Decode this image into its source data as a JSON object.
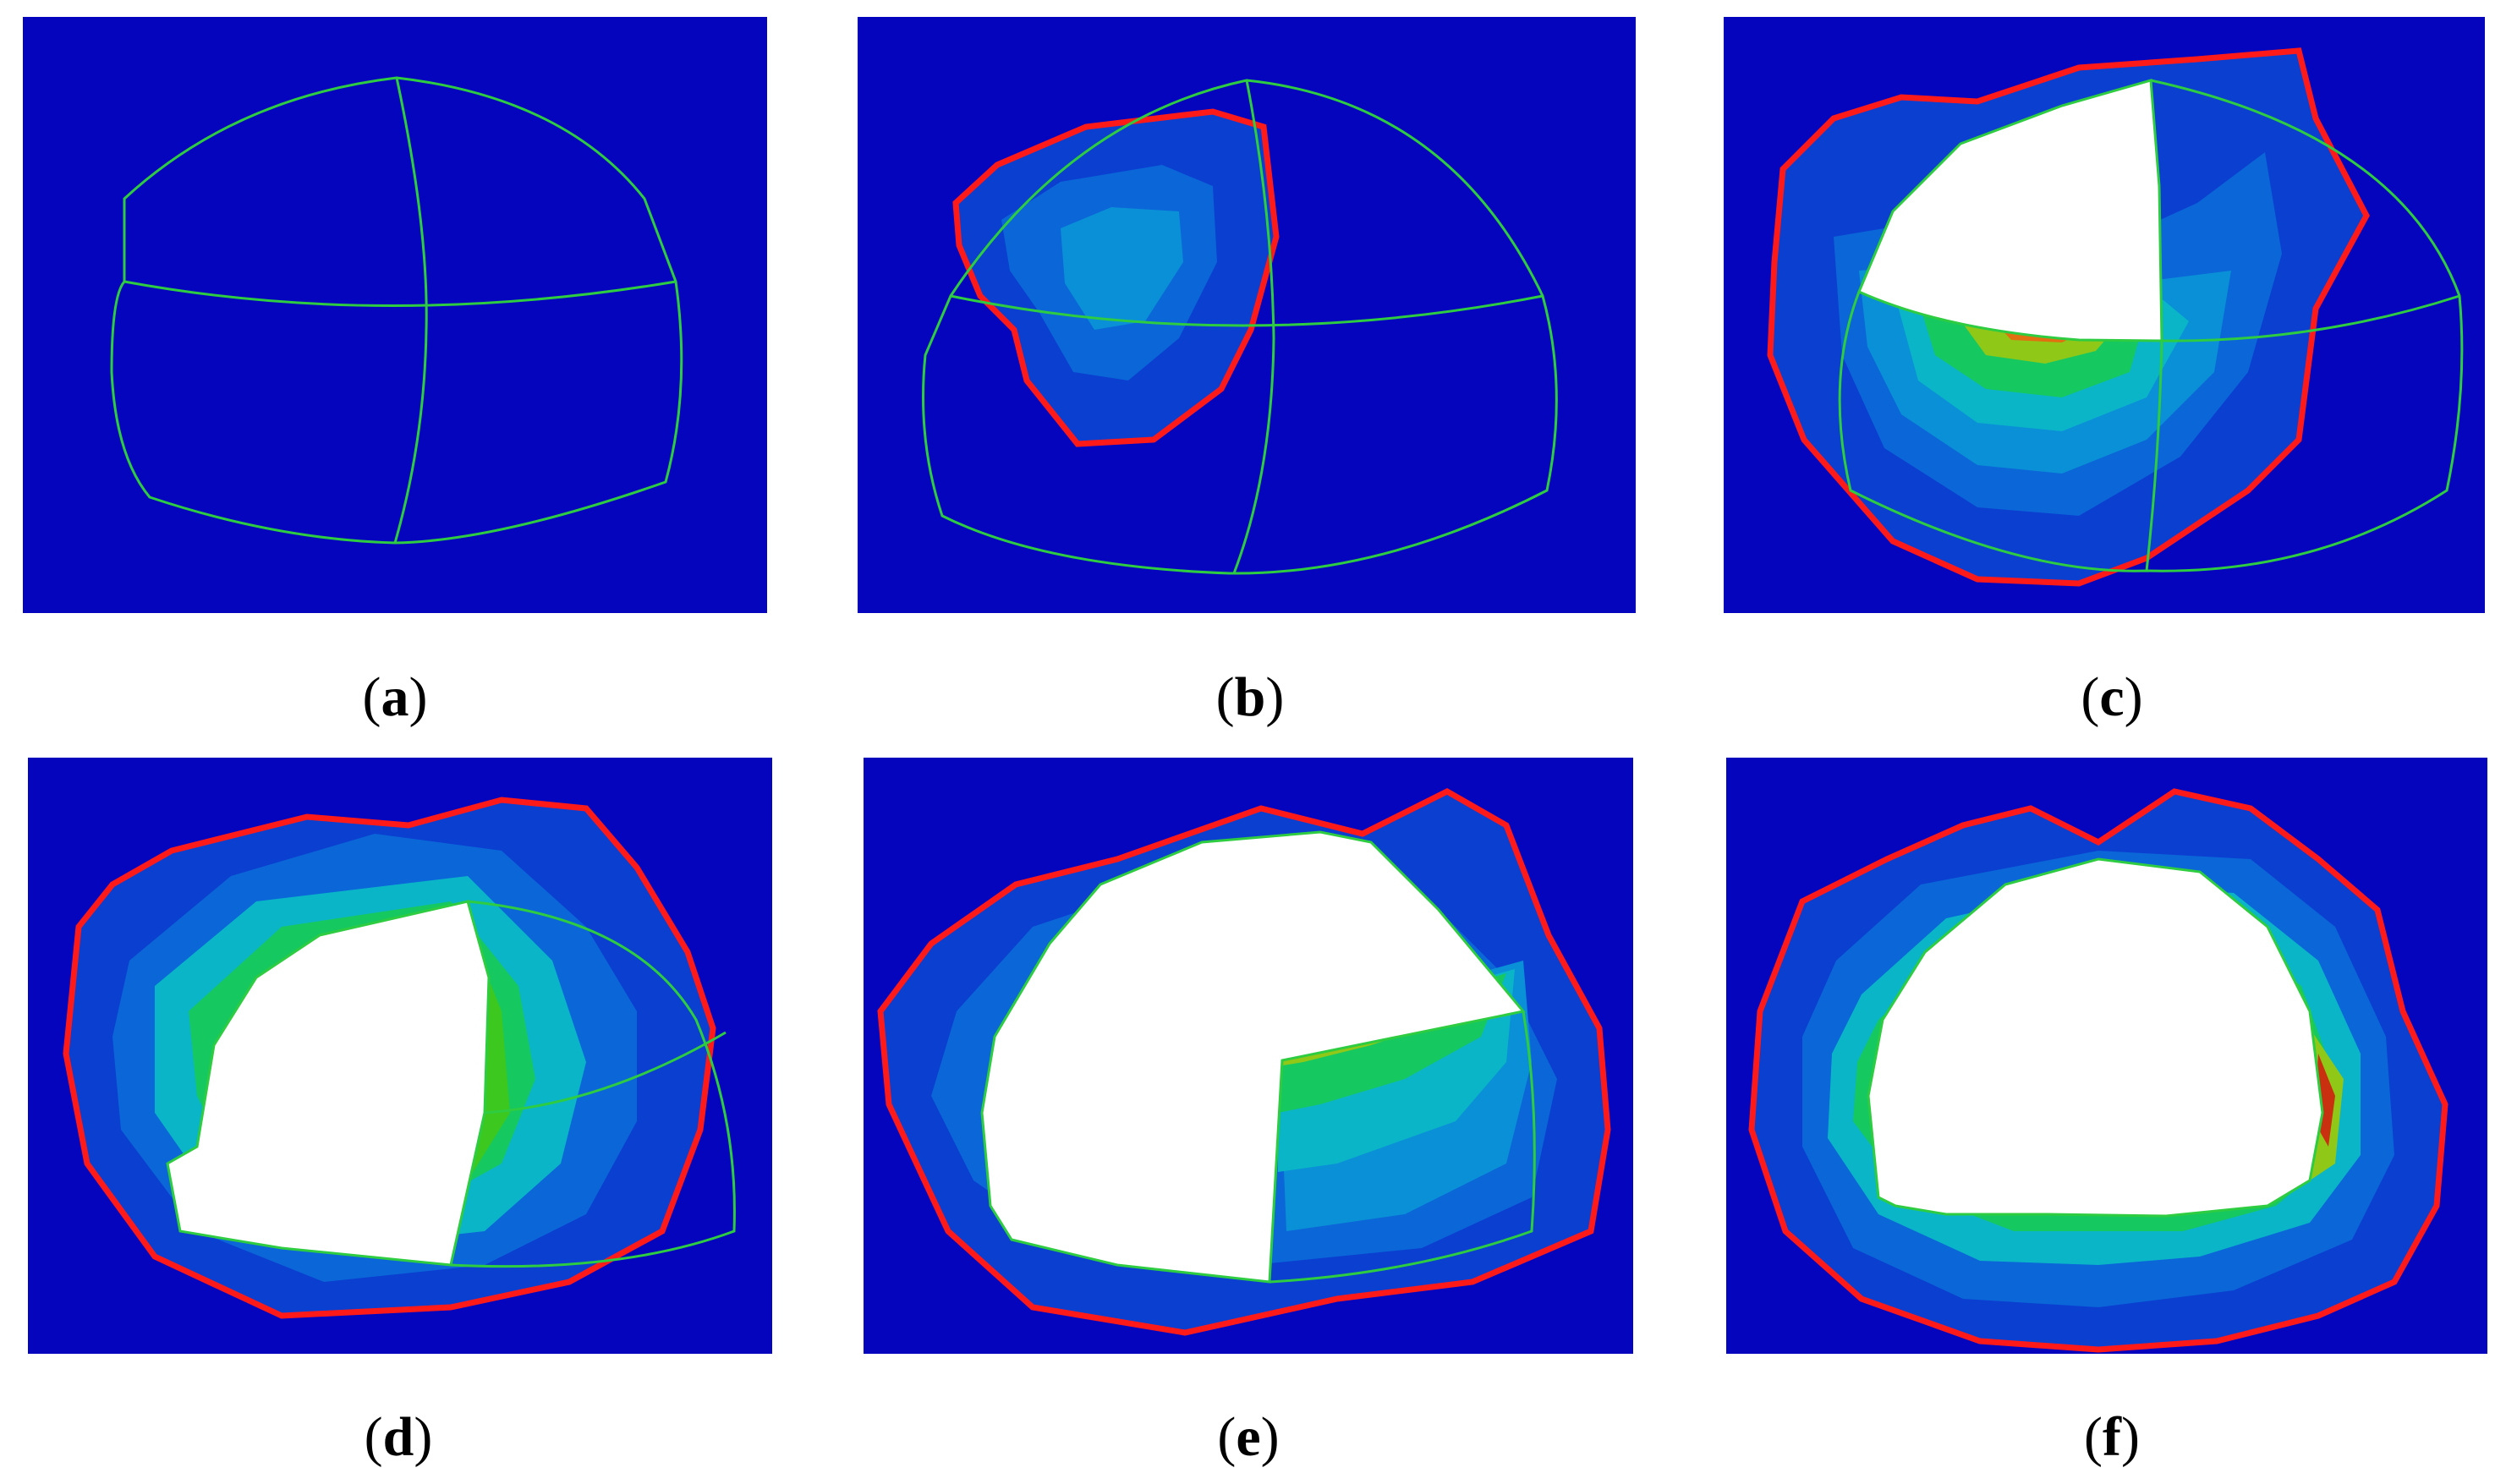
{
  "panels": [
    {
      "id": "a",
      "caption": "(a)",
      "label": "a"
    },
    {
      "id": "b",
      "caption": "(b)",
      "label": "b"
    },
    {
      "id": "c",
      "caption": "(c)",
      "label": "c"
    },
    {
      "id": "d",
      "caption": "(d)",
      "label": "d"
    },
    {
      "id": "e",
      "caption": "(e)",
      "label": "e"
    },
    {
      "id": "f",
      "caption": "(f)",
      "label": "f"
    }
  ],
  "colors": {
    "background": "#0505be",
    "mesh_line": "#2ecc40",
    "plastic_boundary": "#ff1a1a",
    "excavated": "#ffffff",
    "contour_scale": [
      "#0505be",
      "#0a3fd0",
      "#0b66d8",
      "#0a90d6",
      "#0ab5c8",
      "#0ac8a0",
      "#16c860",
      "#3cc81e",
      "#90c818",
      "#d0b010",
      "#e07010",
      "#c83010"
    ]
  }
}
